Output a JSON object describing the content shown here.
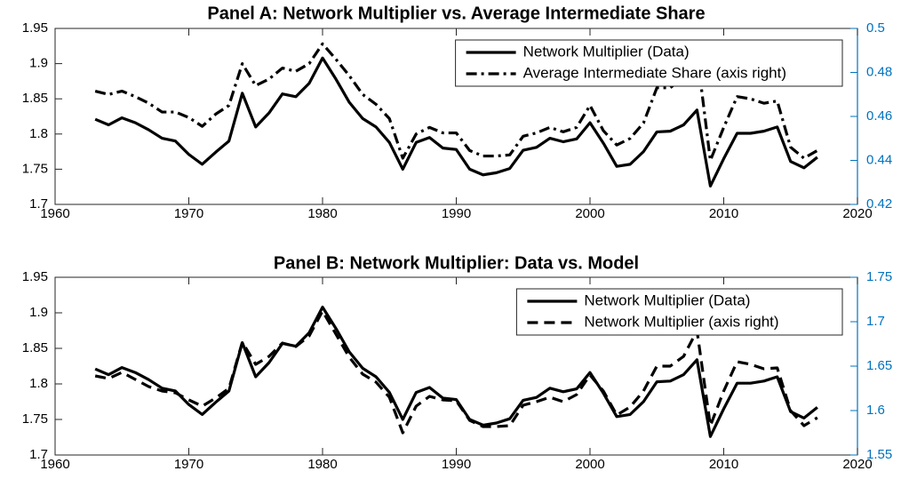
{
  "chart_data": [
    {
      "type": "line",
      "title": "Panel A: Network Multiplier vs. Average Intermediate Share",
      "x": [
        1963,
        1964,
        1965,
        1966,
        1967,
        1968,
        1969,
        1970,
        1971,
        1972,
        1973,
        1974,
        1975,
        1976,
        1977,
        1978,
        1979,
        1980,
        1981,
        1982,
        1983,
        1984,
        1985,
        1986,
        1987,
        1988,
        1989,
        1990,
        1991,
        1992,
        1993,
        1994,
        1995,
        1996,
        1997,
        1998,
        1999,
        2000,
        2001,
        2002,
        2003,
        2004,
        2005,
        2006,
        2007,
        2008,
        2009,
        2010,
        2011,
        2012,
        2013,
        2014,
        2015,
        2016,
        2017
      ],
      "xlim": [
        1960,
        2020
      ],
      "xticks": [
        1960,
        1970,
        1980,
        1990,
        2000,
        2010,
        2020
      ],
      "ylim": [
        1.7,
        1.95
      ],
      "yticks": [
        1.7,
        1.75,
        1.8,
        1.85,
        1.9,
        1.95
      ],
      "y2lim": [
        0.42,
        0.5
      ],
      "y2ticks": [
        0.42,
        0.44,
        0.46,
        0.48,
        0.5
      ],
      "y2color": "#0072bd",
      "legend": "upper right",
      "series": [
        {
          "name": "Network Multiplier (Data)",
          "color": "#000000",
          "dash": "solid",
          "values": [
            1.821,
            1.813,
            1.823,
            1.816,
            1.806,
            1.794,
            1.79,
            1.771,
            1.757,
            1.774,
            1.79,
            1.858,
            1.81,
            1.83,
            1.857,
            1.853,
            1.872,
            1.908,
            1.878,
            1.845,
            1.822,
            1.81,
            1.788,
            1.75,
            1.788,
            1.795,
            1.78,
            1.778,
            1.75,
            1.742,
            1.745,
            1.751,
            1.777,
            1.781,
            1.794,
            1.789,
            1.793,
            1.816,
            1.787,
            1.754,
            1.757,
            1.775,
            1.803,
            1.804,
            1.813,
            1.834,
            1.726,
            1.765,
            1.801,
            1.801,
            1.804,
            1.81,
            1.761,
            1.752,
            1.767
          ]
        },
        {
          "name": "Average Intermediate Share (axis right)",
          "color": "#000000",
          "dash": "dashdot",
          "axis": "y2",
          "values": [
            0.4715,
            0.47,
            0.4715,
            0.469,
            0.466,
            0.462,
            0.462,
            0.4595,
            0.4555,
            0.461,
            0.465,
            0.484,
            0.474,
            0.477,
            0.482,
            0.4805,
            0.484,
            0.493,
            0.486,
            0.4785,
            0.47,
            0.4655,
            0.459,
            0.441,
            0.452,
            0.455,
            0.4525,
            0.4525,
            0.4445,
            0.442,
            0.442,
            0.4425,
            0.451,
            0.4525,
            0.455,
            0.453,
            0.455,
            0.465,
            0.4535,
            0.447,
            0.45,
            0.457,
            0.473,
            0.473,
            0.478,
            0.489,
            0.44,
            0.455,
            0.469,
            0.468,
            0.466,
            0.467,
            0.446,
            0.441,
            0.4445
          ]
        }
      ]
    },
    {
      "type": "line",
      "title": "Panel B: Network Multiplier: Data vs. Model",
      "x": [
        1963,
        1964,
        1965,
        1966,
        1967,
        1968,
        1969,
        1970,
        1971,
        1972,
        1973,
        1974,
        1975,
        1976,
        1977,
        1978,
        1979,
        1980,
        1981,
        1982,
        1983,
        1984,
        1985,
        1986,
        1987,
        1988,
        1989,
        1990,
        1991,
        1992,
        1993,
        1994,
        1995,
        1996,
        1997,
        1998,
        1999,
        2000,
        2001,
        2002,
        2003,
        2004,
        2005,
        2006,
        2007,
        2008,
        2009,
        2010,
        2011,
        2012,
        2013,
        2014,
        2015,
        2016,
        2017
      ],
      "xlim": [
        1960,
        2020
      ],
      "xticks": [
        1960,
        1970,
        1980,
        1990,
        2000,
        2010,
        2020
      ],
      "ylim": [
        1.7,
        1.95
      ],
      "yticks": [
        1.7,
        1.75,
        1.8,
        1.85,
        1.9,
        1.95
      ],
      "y2lim": [
        1.55,
        1.75
      ],
      "y2ticks": [
        1.55,
        1.6,
        1.65,
        1.7,
        1.75
      ],
      "y2color": "#0072bd",
      "legend": "upper right",
      "series": [
        {
          "name": "Network Multiplier (Data)",
          "color": "#000000",
          "dash": "solid",
          "values": [
            1.821,
            1.813,
            1.823,
            1.816,
            1.806,
            1.794,
            1.79,
            1.771,
            1.757,
            1.774,
            1.79,
            1.858,
            1.81,
            1.83,
            1.857,
            1.853,
            1.872,
            1.908,
            1.878,
            1.845,
            1.822,
            1.81,
            1.788,
            1.75,
            1.788,
            1.795,
            1.78,
            1.778,
            1.75,
            1.742,
            1.745,
            1.751,
            1.777,
            1.781,
            1.794,
            1.789,
            1.793,
            1.816,
            1.787,
            1.754,
            1.757,
            1.775,
            1.803,
            1.804,
            1.813,
            1.834,
            1.726,
            1.765,
            1.801,
            1.801,
            1.804,
            1.81,
            1.761,
            1.752,
            1.767
          ]
        },
        {
          "name": "Network Multiplier (axis right)",
          "color": "#000000",
          "dash": "dashed",
          "axis": "y2",
          "values": [
            1.639,
            1.636,
            1.643,
            1.635,
            1.627,
            1.622,
            1.62,
            1.612,
            1.605,
            1.614,
            1.625,
            1.677,
            1.652,
            1.661,
            1.676,
            1.672,
            1.684,
            1.712,
            1.686,
            1.66,
            1.641,
            1.632,
            1.615,
            1.575,
            1.605,
            1.616,
            1.612,
            1.611,
            1.589,
            1.582,
            1.582,
            1.583,
            1.606,
            1.61,
            1.615,
            1.61,
            1.618,
            1.64,
            1.622,
            1.595,
            1.604,
            1.622,
            1.65,
            1.65,
            1.661,
            1.69,
            1.583,
            1.622,
            1.655,
            1.652,
            1.647,
            1.648,
            1.6,
            1.583,
            1.592
          ]
        }
      ]
    }
  ]
}
